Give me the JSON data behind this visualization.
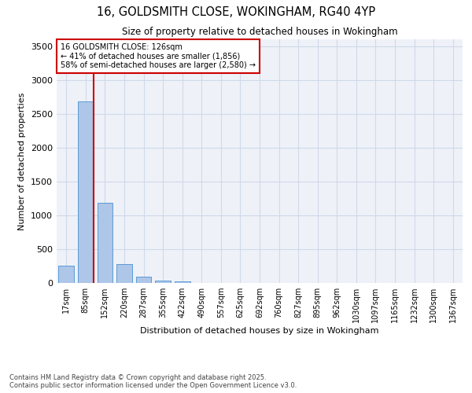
{
  "title_line1": "16, GOLDSMITH CLOSE, WOKINGHAM, RG40 4YP",
  "title_line2": "Size of property relative to detached houses in Wokingham",
  "xlabel": "Distribution of detached houses by size in Wokingham",
  "ylabel": "Number of detached properties",
  "categories": [
    "17sqm",
    "85sqm",
    "152sqm",
    "220sqm",
    "287sqm",
    "355sqm",
    "422sqm",
    "490sqm",
    "557sqm",
    "625sqm",
    "692sqm",
    "760sqm",
    "827sqm",
    "895sqm",
    "962sqm",
    "1030sqm",
    "1097sqm",
    "1165sqm",
    "1232sqm",
    "1300sqm",
    "1367sqm"
  ],
  "values": [
    250,
    2680,
    1180,
    280,
    95,
    35,
    20,
    3,
    0,
    0,
    0,
    0,
    0,
    0,
    0,
    0,
    0,
    0,
    0,
    0,
    0
  ],
  "bar_color": "#aec6e8",
  "bar_edge_color": "#5b9bd5",
  "grid_color": "#d0d8e8",
  "background_color": "#eef2f8",
  "vline_color": "#cc0000",
  "annotation_title": "16 GOLDSMITH CLOSE: 126sqm",
  "annotation_line1": "← 41% of detached houses are smaller (1,856)",
  "annotation_line2": "58% of semi-detached houses are larger (2,580) →",
  "annotation_box_color": "#cc0000",
  "ylim": [
    0,
    3600
  ],
  "yticks": [
    0,
    500,
    1000,
    1500,
    2000,
    2500,
    3000,
    3500
  ],
  "footnote_line1": "Contains HM Land Registry data © Crown copyright and database right 2025.",
  "footnote_line2": "Contains public sector information licensed under the Open Government Licence v3.0."
}
